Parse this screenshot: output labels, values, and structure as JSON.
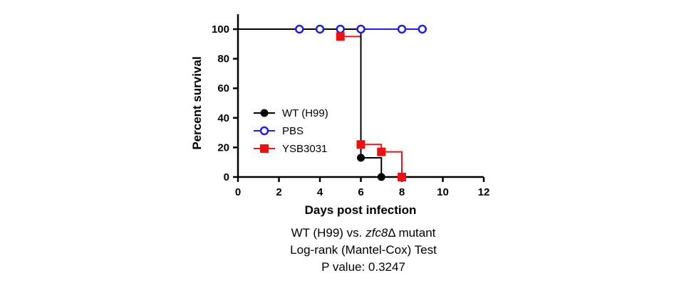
{
  "chart_data": {
    "type": "line",
    "step": true,
    "xlabel": "Days post infection",
    "ylabel": "Percent survival",
    "xlim": [
      0,
      12
    ],
    "ylim": [
      0,
      100
    ],
    "xticks": [
      0,
      2,
      4,
      6,
      8,
      10,
      12
    ],
    "yticks": [
      0,
      20,
      40,
      60,
      80,
      100
    ],
    "grid": false,
    "legend_position": "center-left",
    "series": [
      {
        "name": "WT (H99)",
        "color": "#000000",
        "marker": "filled-circle",
        "steps": [
          [
            0,
            100
          ],
          [
            6,
            100
          ],
          [
            6,
            13
          ],
          [
            7,
            13
          ],
          [
            7,
            0
          ]
        ],
        "markers": [
          [
            6,
            13
          ],
          [
            7,
            0
          ]
        ]
      },
      {
        "name": "PBS",
        "color": "#1f1fe0",
        "marker": "open-circle",
        "steps": [
          [
            0,
            100
          ],
          [
            9,
            100
          ]
        ],
        "markers": [
          [
            3,
            100
          ],
          [
            4,
            100
          ],
          [
            5,
            100
          ],
          [
            6,
            100
          ],
          [
            8,
            100
          ],
          [
            9,
            100
          ]
        ]
      },
      {
        "name": "YSB3031",
        "color": "#ee1111",
        "marker": "filled-square",
        "steps": [
          [
            0,
            100
          ],
          [
            5,
            100
          ],
          [
            5,
            95
          ],
          [
            6,
            95
          ],
          [
            6,
            22
          ],
          [
            7,
            22
          ],
          [
            7,
            17
          ],
          [
            8,
            17
          ],
          [
            8,
            0
          ]
        ],
        "markers": [
          [
            5,
            95
          ],
          [
            6,
            22
          ],
          [
            7,
            17
          ],
          [
            8,
            0
          ]
        ]
      }
    ]
  },
  "caption": {
    "line1_prefix": "WT (H99) vs. ",
    "line1_gene": "zfc8",
    "line1_suffix": "Δ mutant",
    "line2": "Log-rank (Mantel-Cox) Test",
    "line3": "P value: 0.3247"
  }
}
